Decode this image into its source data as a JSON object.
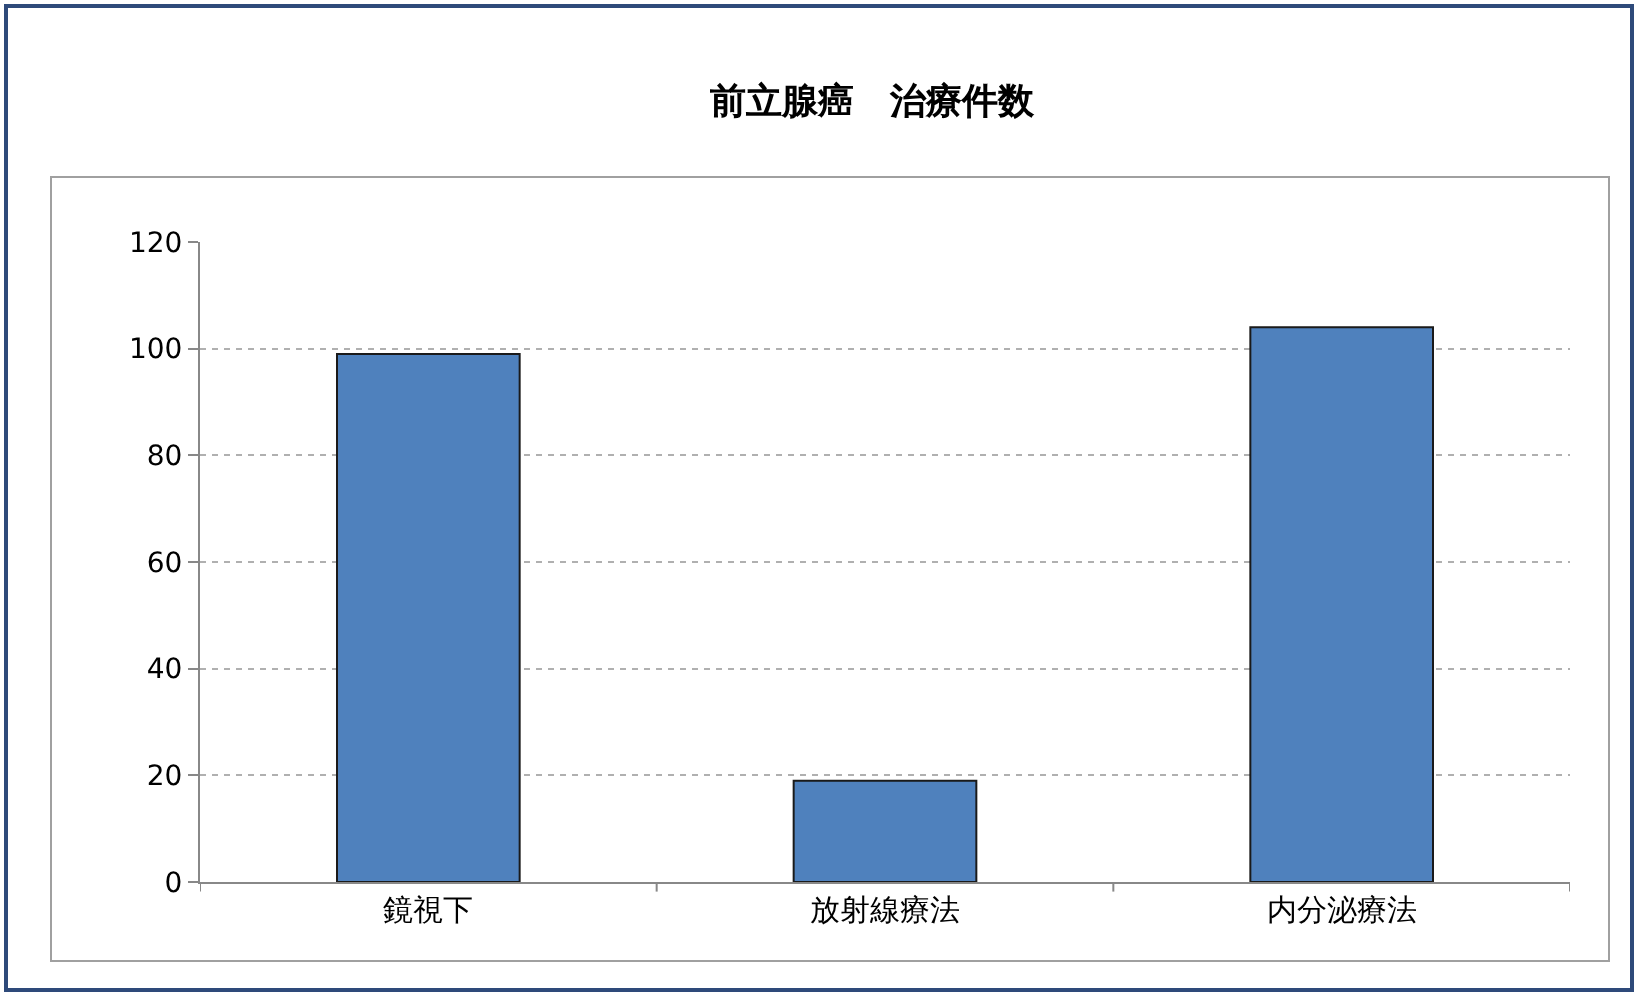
{
  "chart_data": {
    "type": "bar",
    "title": "前立腺癌　治療件数",
    "categories": [
      "鏡視下",
      "放射線療法",
      "内分泌療法"
    ],
    "values": [
      99,
      19,
      104
    ],
    "color": "#4f81bd",
    "ylim": [
      0,
      120
    ],
    "yticks": [
      0,
      20,
      40,
      60,
      80,
      100,
      120
    ],
    "grid": "y"
  }
}
